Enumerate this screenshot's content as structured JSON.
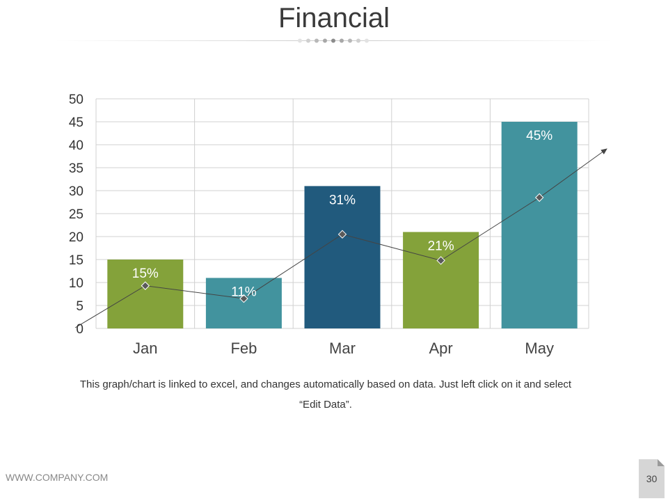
{
  "slide": {
    "title": "Financial",
    "caption": "This graph/chart is linked to excel, and changes automatically based on data. Just left click on it and select “Edit Data”.",
    "footer_url": "WWW.COMPANY.COM",
    "page_number": "30"
  },
  "colors": {
    "green": "#84a23a",
    "teal": "#42939e",
    "navy": "#215a7d",
    "grid": "#d0d0d0",
    "line": "#444444"
  },
  "chart_data": {
    "type": "bar",
    "categories": [
      "Jan",
      "Feb",
      "Mar",
      "Apr",
      "May"
    ],
    "values": [
      15,
      11,
      31,
      21,
      45
    ],
    "data_labels": [
      "15%",
      "11%",
      "31%",
      "21%",
      "45%"
    ],
    "bar_colors": [
      "#84a23a",
      "#42939e",
      "#215a7d",
      "#84a23a",
      "#42939e"
    ],
    "trend_points": [
      9.3,
      6.5,
      20.5,
      14.8,
      28.5
    ],
    "ylim": [
      0,
      50
    ],
    "yticks": [
      "0",
      "5",
      "10",
      "15",
      "20",
      "25",
      "30",
      "35",
      "40",
      "45",
      "50"
    ],
    "grid": true
  }
}
